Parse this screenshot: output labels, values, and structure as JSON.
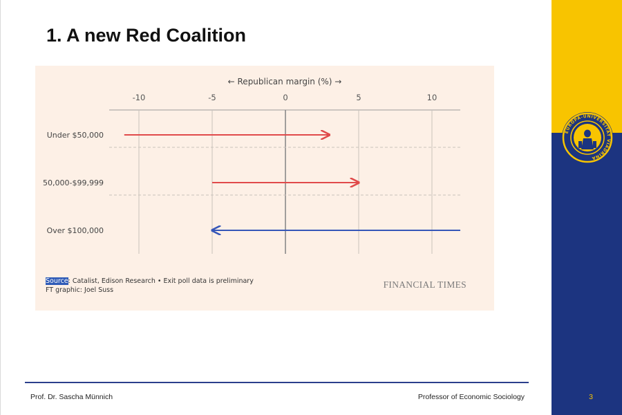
{
  "slide": {
    "title": "1. A new Red Coalition",
    "page_number": "3"
  },
  "chart_data": {
    "type": "arrow",
    "axis_title": "← Republican margin (%) →",
    "xlim": [
      -12,
      12
    ],
    "x_ticks": [
      -10,
      -5,
      0,
      5,
      10
    ],
    "x_tick_labels": [
      "-10",
      "-5",
      "0",
      "5",
      "10"
    ],
    "categories": [
      "Under $50,000",
      "50,000-$99,999",
      "Over $100,000"
    ],
    "series": [
      {
        "category": "Under $50,000",
        "from": -11,
        "to": 3,
        "color": "#e04a4a"
      },
      {
        "category": "50,000-$99,999",
        "from": -5,
        "to": 5,
        "color": "#e04a4a"
      },
      {
        "category": "Over $100,000",
        "from": 12,
        "to": -5,
        "color": "#3556b8"
      }
    ],
    "grid": true
  },
  "source": {
    "key": "Source",
    "text": ": Catalist, Edison Research • Exit poll data is preliminary",
    "credit": "FT graphic: Joel Suss"
  },
  "logo": {
    "text": "FINANCIAL TIMES"
  },
  "footer": {
    "left": "Prof. Dr. Sascha Münnich",
    "right": "Professor of Economic Sociology"
  },
  "seal": {
    "text": "EUROPA-UNIVERSITÄT VIADRINA"
  },
  "colors": {
    "band_top": "#f8c400",
    "band_bottom": "#1c3480",
    "chart_bg": "#fdf0e6",
    "red_arrow": "#e04a4a",
    "blue_arrow": "#3556b8"
  }
}
